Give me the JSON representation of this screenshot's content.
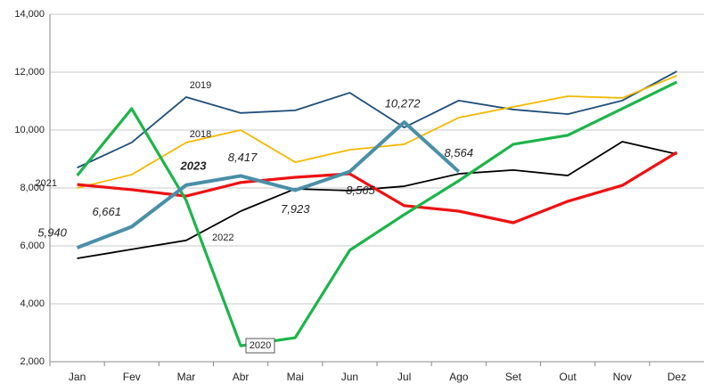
{
  "chart_data": {
    "type": "line",
    "categories": [
      "Jan",
      "Fev",
      "Mar",
      "Abr",
      "Mai",
      "Jun",
      "Jul",
      "Ago",
      "Set",
      "Out",
      "Nov",
      "Dez"
    ],
    "series": [
      {
        "name": "2019",
        "color": "#1f4e79",
        "values": [
          8700,
          9570,
          11140,
          10590,
          10680,
          11290,
          10090,
          11020,
          10710,
          10550,
          11020,
          12030
        ]
      },
      {
        "name": "2018",
        "color": "#f5b800",
        "values": [
          8000,
          8460,
          9570,
          10000,
          8890,
          9320,
          9510,
          10430,
          10800,
          11170,
          11110,
          11880
        ]
      },
      {
        "name": "2022",
        "color": "#000000",
        "values": [
          5570,
          5880,
          6190,
          7200,
          7970,
          7910,
          8060,
          8490,
          8620,
          8430,
          9600,
          9170
        ]
      },
      {
        "name": "2021",
        "color": "#ee1111",
        "values": [
          8120,
          7940,
          7720,
          8190,
          8370,
          8490,
          7390,
          7200,
          6800,
          7540,
          8090,
          9230
        ]
      },
      {
        "name": "2020",
        "color": "#1db44a",
        "values": [
          8430,
          10740,
          7570,
          2550,
          2830,
          5850,
          7080,
          8250,
          9510,
          9820,
          10740,
          11660
        ]
      },
      {
        "name": "2023",
        "color": "#4a8fa8",
        "values": [
          5940,
          6661,
          8100,
          8417,
          7923,
          8565,
          10272,
          8564,
          null,
          null,
          null,
          null
        ],
        "value_labels": [
          "5,940",
          "6,661",
          null,
          "8,417",
          "7,923",
          "8,565",
          "10,272",
          "8,564",
          null,
          null,
          null,
          null
        ]
      }
    ],
    "ylim": [
      2000,
      14000
    ],
    "yticks": [
      {
        "value": 2000,
        "label": "2,000"
      },
      {
        "value": 4000,
        "label": "4,000"
      },
      {
        "value": 6000,
        "label": "6,000"
      },
      {
        "value": 8000,
        "label": "8,000"
      },
      {
        "value": 10000,
        "label": "10,000"
      },
      {
        "value": 12000,
        "label": "12,000"
      },
      {
        "value": 14000,
        "label": "14,000"
      }
    ],
    "grid": true
  }
}
